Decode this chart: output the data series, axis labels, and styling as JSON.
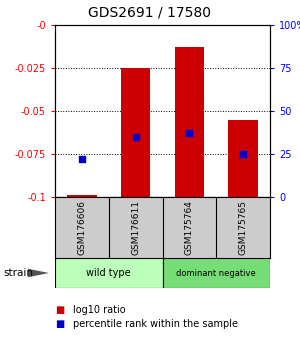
{
  "title": "GDS2691 / 17580",
  "samples": [
    "GSM176606",
    "GSM176611",
    "GSM175764",
    "GSM175765"
  ],
  "log10_ratio": [
    -0.099,
    -0.025,
    -0.013,
    -0.055
  ],
  "percentile_rank": [
    22,
    35,
    37,
    25
  ],
  "bar_color": "#cc0000",
  "dot_color": "#0000cc",
  "ylim_left": [
    -0.1,
    0
  ],
  "ylim_right": [
    0,
    100
  ],
  "yticks_left": [
    0,
    -0.025,
    -0.05,
    -0.075,
    -0.1
  ],
  "ytick_labels_left": [
    "-0",
    "-0.025",
    "-0.05",
    "-0.075",
    "-0.1"
  ],
  "yticks_right": [
    100,
    75,
    50,
    25,
    0
  ],
  "ytick_labels_right": [
    "100%",
    "75",
    "50",
    "25",
    "0"
  ],
  "groups": [
    {
      "label": "wild type",
      "color": "#bbffbb",
      "span": [
        0,
        2
      ]
    },
    {
      "label": "dominant negative",
      "color": "#77dd77",
      "span": [
        2,
        4
      ]
    }
  ],
  "legend_red": "log10 ratio",
  "legend_blue": "percentile rank within the sample",
  "strain_label": "strain",
  "sample_box_color": "#cccccc",
  "bg_color": "#ffffff",
  "bar_width": 0.55
}
